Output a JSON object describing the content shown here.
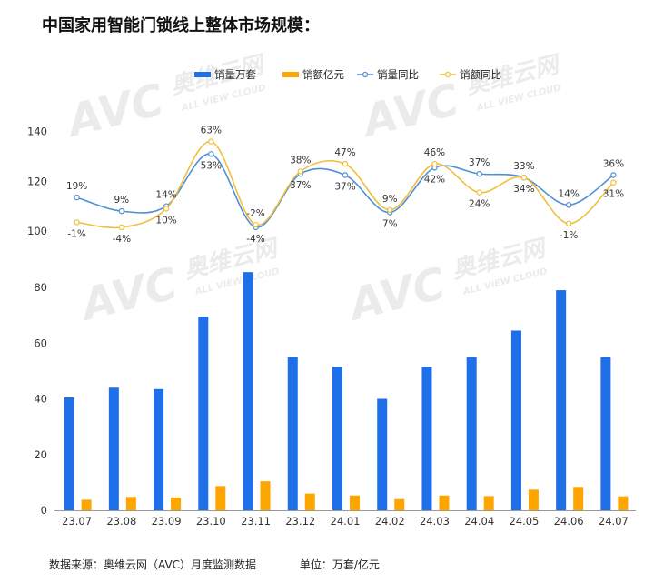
{
  "title": "中国家用智能门锁线上整体市场规模：",
  "footer": {
    "source": "数据来源：奥维云网（AVC）月度监测数据",
    "unit": "单位：万套/亿元"
  },
  "watermark": {
    "main": "AVC",
    "cn": "奥维云网",
    "en": "ALL VIEW CLOUD"
  },
  "colors": {
    "volume": "#1E6FE8",
    "revenue": "#FFA500",
    "volume_yoy": "#4F8FD6",
    "revenue_yoy": "#F0BF3C"
  },
  "chart_data": {
    "type": "bar+line",
    "categories": [
      "23.07",
      "23.08",
      "23.09",
      "23.10",
      "23.11",
      "23.12",
      "24.01",
      "24.02",
      "24.03",
      "24.04",
      "24.05",
      "24.06",
      "24.07"
    ],
    "legend": [
      "销量万套",
      "销额亿元",
      "销量同比",
      "销额同比"
    ],
    "bars": {
      "yticks": [
        "0",
        "20",
        "40",
        "60",
        "80"
      ],
      "ylim": [
        0,
        90
      ],
      "series": [
        {
          "name": "销量万套",
          "values": [
            40.5,
            44,
            43.5,
            69.5,
            85.5,
            55,
            51.5,
            40,
            51.5,
            55,
            64.5,
            79,
            55
          ]
        },
        {
          "name": "销额亿元",
          "values": [
            3.8,
            4.8,
            4.6,
            8.7,
            10.4,
            6,
            5.3,
            4,
            5.3,
            5.1,
            7.4,
            8.4,
            5
          ]
        }
      ]
    },
    "lines": {
      "yticks": [
        "100",
        "120",
        "140"
      ],
      "ylim": [
        100,
        145
      ],
      "series": [
        {
          "name": "销量同比",
          "values": [
            113.5,
            108,
            110,
            131,
            101.5,
            123,
            122.5,
            107.5,
            125.5,
            123,
            121.5,
            110.5,
            122.5
          ],
          "labels": [
            "19%",
            "9%",
            "14%",
            "53%",
            "-4%",
            "37%",
            "37%",
            "7%",
            "42%",
            "37%",
            "33%",
            "14%",
            "36%"
          ]
        },
        {
          "name": "销额同比",
          "values": [
            103.5,
            101.5,
            109,
            136,
            102.5,
            124,
            127,
            108.5,
            127,
            115.5,
            121.5,
            103,
            119.5
          ],
          "labels": [
            "-1%",
            "-4%",
            "10%",
            "63%",
            "-2%",
            "38%",
            "47%",
            "9%",
            "46%",
            "24%",
            "34%",
            "-1%",
            "31%"
          ]
        }
      ]
    }
  }
}
